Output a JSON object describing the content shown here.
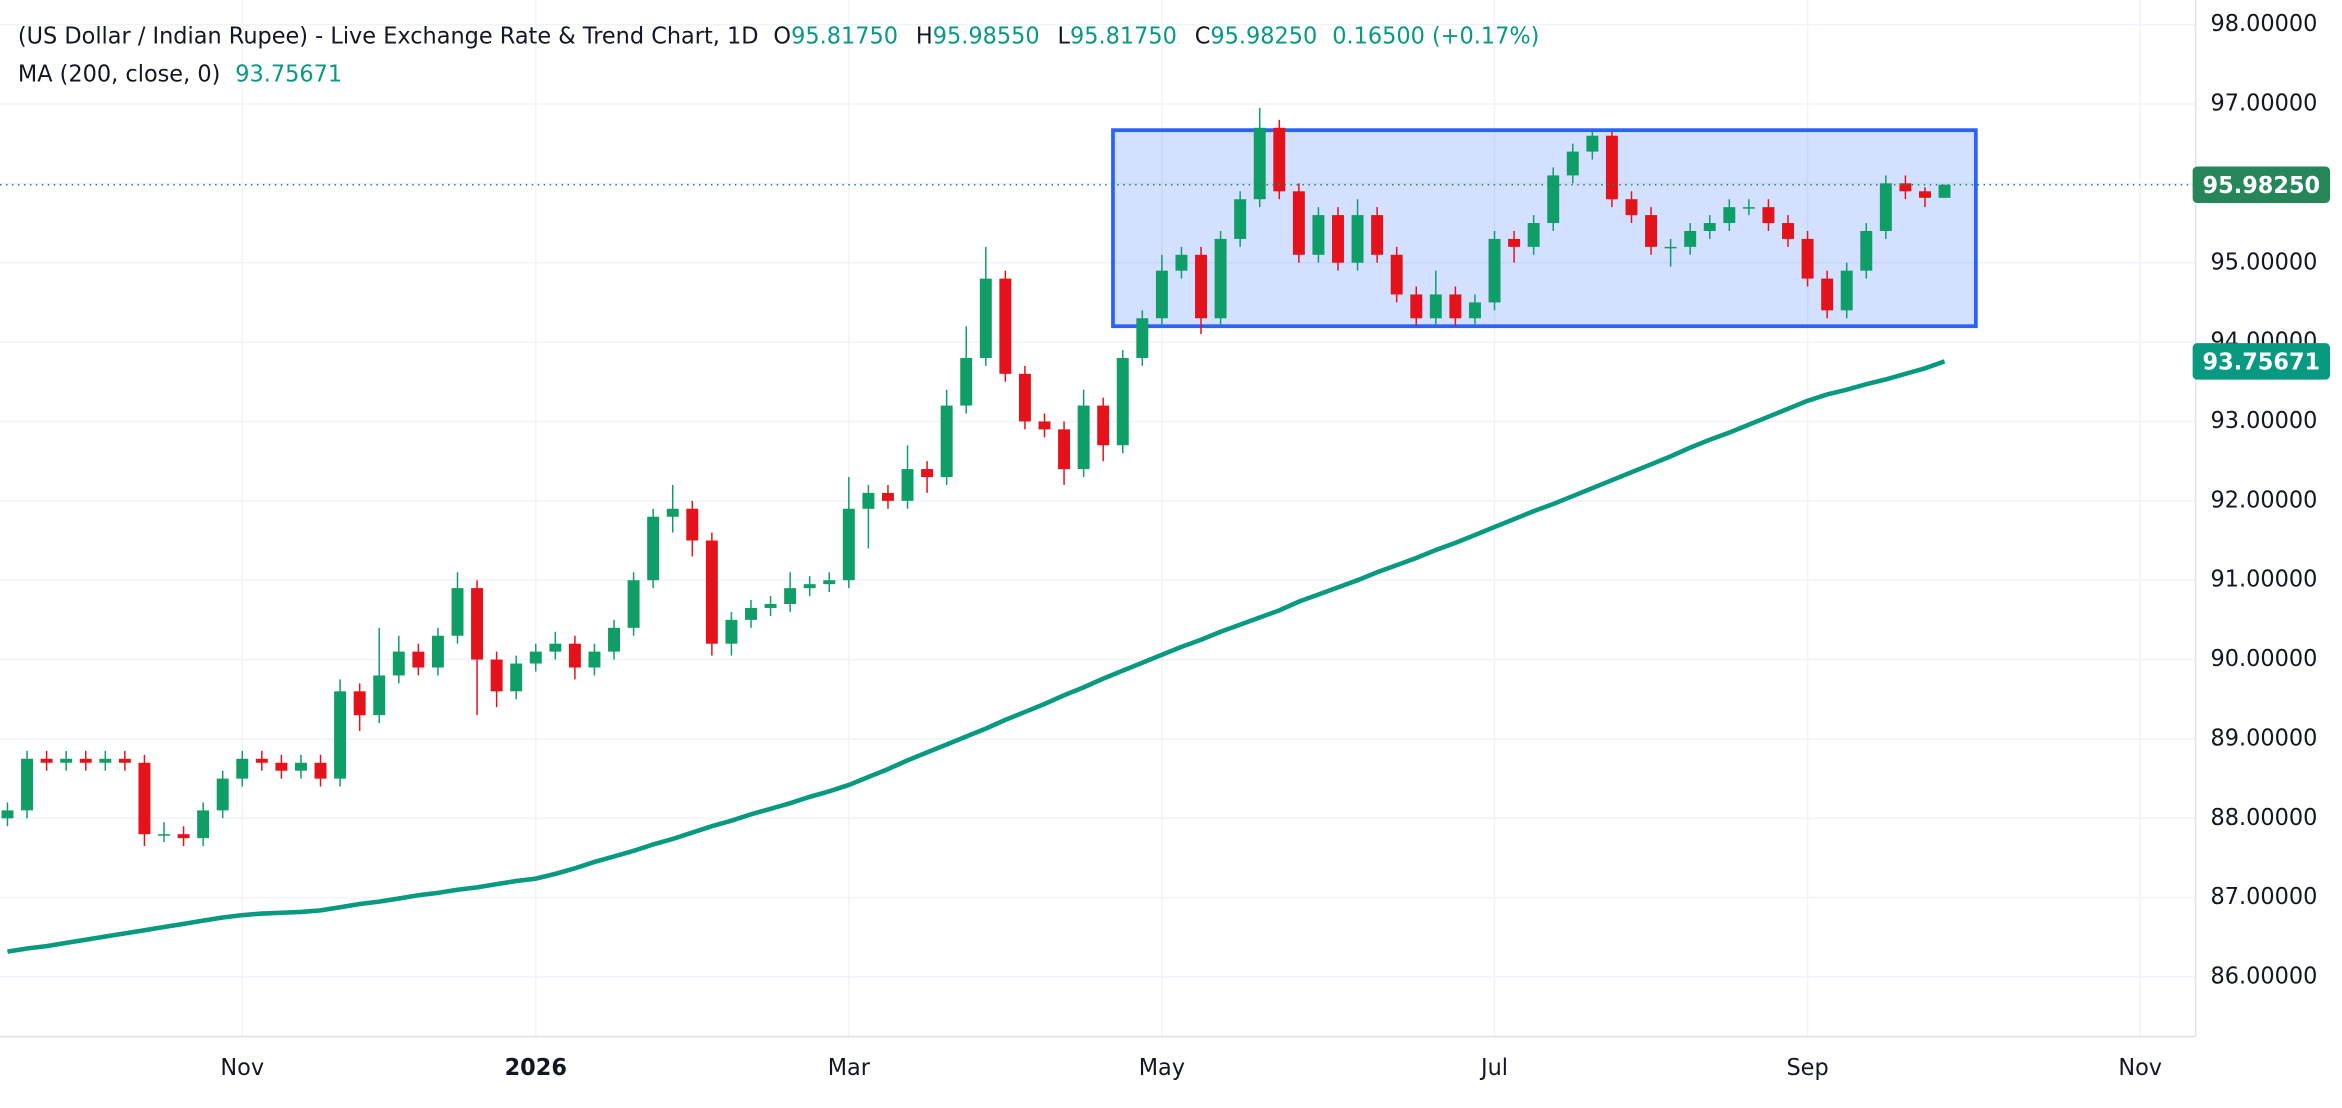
{
  "header": {
    "title": "(US Dollar / Indian Rupee) - Live Exchange Rate & Trend Chart, 1D",
    "ohlc": [
      {
        "key": "O",
        "text": "95.81750"
      },
      {
        "key": "H",
        "text": "95.98550"
      },
      {
        "key": "L",
        "text": "95.81750"
      },
      {
        "key": "C",
        "text": "95.98250"
      }
    ],
    "change": "0.16500 (+0.17%)",
    "indicator": "MA (200, close, 0)",
    "indicator_value": "93.75671"
  },
  "chart_data": {
    "type": "candlestick",
    "categories": [
      null,
      null,
      null,
      null,
      null,
      null,
      null,
      null,
      null,
      null,
      null,
      null,
      "Nov",
      null,
      null,
      null,
      null,
      null,
      null,
      null,
      null,
      null,
      null,
      null,
      null,
      null,
      null,
      "2026",
      null,
      null,
      null,
      null,
      null,
      null,
      null,
      null,
      null,
      null,
      null,
      null,
      null,
      null,
      null,
      "Mar",
      null,
      null,
      null,
      null,
      null,
      null,
      null,
      null,
      null,
      null,
      null,
      null,
      null,
      null,
      null,
      "May",
      null,
      null,
      null,
      null,
      null,
      null,
      null,
      null,
      null,
      null,
      null,
      null,
      null,
      null,
      null,
      null,
      "Jul",
      null,
      null,
      null,
      null,
      null,
      null,
      null,
      null,
      null,
      null,
      null,
      null,
      null,
      null,
      null,
      "Sep",
      null,
      null,
      null,
      null,
      null,
      null,
      null,
      null,
      null,
      null,
      null,
      null,
      null,
      null,
      null,
      null,
      "Nov"
    ],
    "open": [
      88.0,
      88.1,
      88.75,
      88.7,
      88.75,
      88.7,
      88.75,
      88.7,
      87.8,
      87.8,
      87.75,
      88.1,
      88.5,
      88.75,
      88.7,
      88.6,
      88.7,
      88.5,
      89.6,
      89.3,
      89.8,
      90.1,
      89.9,
      90.3,
      90.9,
      90.0,
      89.6,
      89.95,
      90.1,
      90.2,
      89.9,
      90.1,
      90.4,
      91.0,
      91.8,
      91.9,
      91.5,
      90.2,
      90.5,
      90.65,
      90.7,
      90.9,
      90.95,
      91.0,
      91.9,
      92.1,
      92.0,
      92.4,
      92.3,
      93.2,
      93.8,
      94.8,
      93.6,
      93.0,
      92.9,
      92.4,
      93.2,
      92.7,
      93.8,
      94.3,
      94.9,
      95.1,
      94.3,
      95.3,
      95.8,
      96.7,
      95.9,
      95.1,
      95.6,
      95.0,
      95.6,
      95.1,
      94.6,
      94.3,
      94.6,
      94.3,
      94.5,
      95.3,
      95.2,
      95.5,
      96.1,
      96.4,
      96.6,
      95.8,
      95.6,
      95.2,
      95.2,
      95.4,
      95.5,
      95.7,
      95.7,
      95.5,
      95.3,
      94.8,
      94.4,
      94.9,
      95.4,
      96.0,
      95.9,
      95.8175,
      null,
      null,
      null,
      null,
      null,
      null,
      null,
      null,
      null,
      null
    ],
    "high": [
      88.2,
      88.85,
      88.85,
      88.85,
      88.85,
      88.85,
      88.85,
      88.8,
      87.95,
      87.9,
      88.2,
      88.6,
      88.85,
      88.85,
      88.8,
      88.8,
      88.8,
      89.75,
      89.7,
      90.4,
      90.3,
      90.2,
      90.4,
      91.1,
      91.0,
      90.1,
      90.05,
      90.2,
      90.35,
      90.3,
      90.2,
      90.5,
      91.1,
      91.9,
      92.2,
      92.0,
      91.6,
      90.6,
      90.75,
      90.8,
      91.1,
      91.05,
      91.1,
      92.3,
      92.2,
      92.2,
      92.7,
      92.5,
      93.4,
      94.2,
      95.2,
      94.9,
      93.7,
      93.1,
      93.0,
      93.4,
      93.3,
      93.9,
      94.4,
      95.1,
      95.2,
      95.2,
      95.4,
      95.9,
      96.95,
      96.8,
      96.0,
      95.7,
      95.7,
      95.8,
      95.7,
      95.2,
      94.7,
      94.9,
      94.7,
      94.6,
      95.4,
      95.4,
      95.6,
      96.2,
      96.5,
      96.65,
      96.65,
      95.9,
      95.7,
      95.3,
      95.5,
      95.6,
      95.8,
      95.8,
      95.8,
      95.6,
      95.4,
      94.9,
      95.0,
      95.5,
      96.1,
      96.1,
      95.95,
      95.9855,
      null,
      null,
      null,
      null,
      null,
      null,
      null,
      null,
      null,
      null
    ],
    "low": [
      87.9,
      88.0,
      88.6,
      88.6,
      88.6,
      88.6,
      88.6,
      87.65,
      87.7,
      87.65,
      87.65,
      88.0,
      88.4,
      88.6,
      88.5,
      88.5,
      88.4,
      88.4,
      89.1,
      89.2,
      89.7,
      89.8,
      89.8,
      90.2,
      89.3,
      89.4,
      89.5,
      89.85,
      90.0,
      89.75,
      89.8,
      90.0,
      90.3,
      90.9,
      91.6,
      91.3,
      90.05,
      90.05,
      90.4,
      90.55,
      90.6,
      90.8,
      90.85,
      90.9,
      91.4,
      91.9,
      91.9,
      92.1,
      92.2,
      93.1,
      93.7,
      93.5,
      92.9,
      92.8,
      92.2,
      92.3,
      92.5,
      92.6,
      93.7,
      94.2,
      94.8,
      94.1,
      94.2,
      95.2,
      95.7,
      95.8,
      95.0,
      95.0,
      94.9,
      94.9,
      95.0,
      94.5,
      94.2,
      94.2,
      94.2,
      94.2,
      94.4,
      95.0,
      95.1,
      95.4,
      96.0,
      96.3,
      95.7,
      95.5,
      95.1,
      94.95,
      95.1,
      95.3,
      95.4,
      95.6,
      95.4,
      95.2,
      94.7,
      94.3,
      94.3,
      94.8,
      95.3,
      95.8,
      95.7,
      95.8175,
      null,
      null,
      null,
      null,
      null,
      null,
      null,
      null,
      null,
      null
    ],
    "close": [
      88.1,
      88.75,
      88.7,
      88.75,
      88.7,
      88.75,
      88.7,
      87.8,
      87.8,
      87.75,
      88.1,
      88.5,
      88.75,
      88.7,
      88.6,
      88.7,
      88.5,
      89.6,
      89.3,
      89.8,
      90.1,
      89.9,
      90.3,
      90.9,
      90.0,
      89.6,
      89.95,
      90.1,
      90.2,
      89.9,
      90.1,
      90.4,
      91.0,
      91.8,
      91.9,
      91.5,
      90.2,
      90.5,
      90.65,
      90.7,
      90.9,
      90.95,
      91.0,
      91.9,
      92.1,
      92.0,
      92.4,
      92.3,
      93.2,
      93.8,
      94.8,
      93.6,
      93.0,
      92.9,
      92.4,
      93.2,
      92.7,
      93.8,
      94.3,
      94.9,
      95.1,
      94.3,
      95.3,
      95.8,
      96.7,
      95.9,
      95.1,
      95.6,
      95.0,
      95.6,
      95.1,
      94.6,
      94.3,
      94.6,
      94.3,
      94.5,
      95.3,
      95.2,
      95.5,
      96.1,
      96.4,
      96.6,
      95.8,
      95.6,
      95.2,
      95.2,
      95.4,
      95.5,
      95.7,
      95.7,
      95.5,
      95.3,
      94.8,
      94.4,
      94.9,
      95.4,
      96.0,
      95.9,
      95.8175,
      95.9825,
      null,
      null,
      null,
      null,
      null,
      null,
      null,
      null,
      null,
      null
    ],
    "up_color": "#0f9d68",
    "down_color": "#e3121b",
    "series": [
      {
        "name": "MA (200, close, 0)",
        "color": "#089981",
        "values": [
          86.32,
          86.36,
          86.39,
          86.43,
          86.47,
          86.51,
          86.55,
          86.59,
          86.63,
          86.67,
          86.71,
          86.75,
          86.78,
          86.8,
          86.81,
          86.82,
          86.84,
          86.88,
          86.92,
          86.95,
          86.99,
          87.03,
          87.06,
          87.1,
          87.13,
          87.17,
          87.21,
          87.24,
          87.3,
          87.37,
          87.45,
          87.52,
          87.59,
          87.67,
          87.74,
          87.82,
          87.9,
          87.97,
          88.05,
          88.12,
          88.19,
          88.27,
          88.34,
          88.42,
          88.52,
          88.62,
          88.73,
          88.83,
          88.93,
          89.03,
          89.13,
          89.24,
          89.34,
          89.44,
          89.55,
          89.65,
          89.76,
          89.86,
          89.96,
          90.06,
          90.16,
          90.25,
          90.35,
          90.44,
          90.53,
          90.62,
          90.73,
          90.82,
          90.91,
          91.0,
          91.1,
          91.19,
          91.28,
          91.38,
          91.47,
          91.57,
          91.67,
          91.77,
          91.87,
          91.96,
          92.06,
          92.16,
          92.26,
          92.36,
          92.46,
          92.56,
          92.67,
          92.77,
          92.86,
          92.96,
          93.06,
          93.16,
          93.26,
          93.34,
          93.4,
          93.47,
          93.53,
          93.6,
          93.67,
          93.75671,
          null,
          null,
          null,
          null,
          null,
          null,
          null,
          null,
          null,
          null
        ]
      }
    ],
    "ylim": [
      85.25,
      98.31
    ],
    "yticks": [
      {
        "value": 86,
        "label": "86.00000"
      },
      {
        "value": 87,
        "label": "87.00000"
      },
      {
        "value": 88,
        "label": "88.00000"
      },
      {
        "value": 89,
        "label": "89.00000"
      },
      {
        "value": 90,
        "label": "90.00000"
      },
      {
        "value": 91,
        "label": "91.00000"
      },
      {
        "value": 92,
        "label": "92.00000"
      },
      {
        "value": 93,
        "label": "93.00000"
      },
      {
        "value": 94,
        "label": "94.00000"
      },
      {
        "value": 95,
        "label": "95.00000"
      },
      {
        "value": 96,
        "label": "96.00000"
      },
      {
        "value": 97,
        "label": "97.00000"
      },
      {
        "value": 98,
        "label": "98.00000"
      }
    ],
    "price_labels": [
      {
        "value": 95.9825,
        "label": "95.98250",
        "color": "#26865a"
      },
      {
        "value": 93.75671,
        "label": "93.75671",
        "color": "#089981"
      }
    ],
    "box": {
      "low": 94.2,
      "high": 96.67,
      "color": "#2962ff"
    },
    "grid": true
  }
}
